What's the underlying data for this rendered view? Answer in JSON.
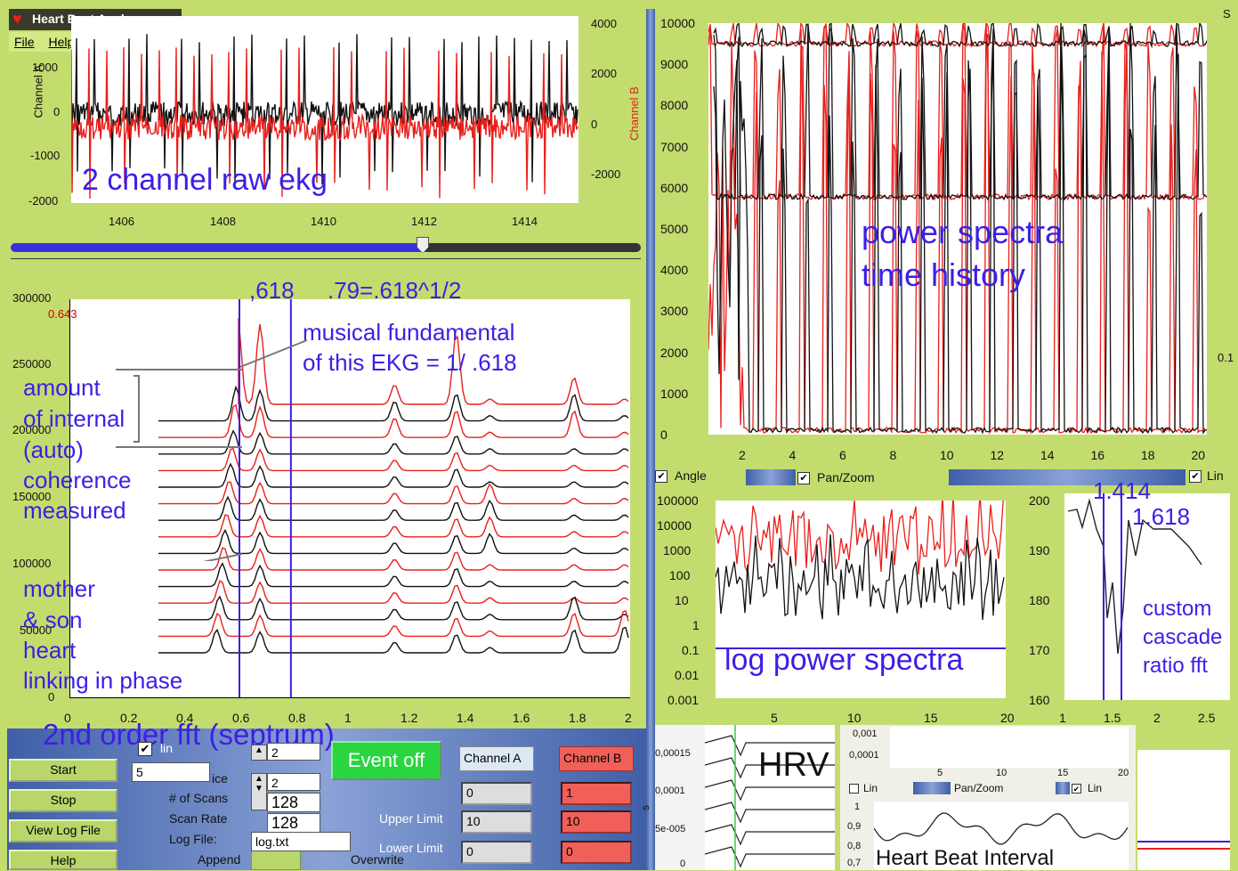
{
  "app": {
    "title": "Heart Beat Analyzer",
    "menu": [
      "File",
      "Help"
    ]
  },
  "ekg": {
    "ylabel_left": "Channel A",
    "ylabel_right": "Channel B",
    "yticks_left": [
      "1000",
      "0",
      "-1000",
      "-2000"
    ],
    "yticks_right": [
      "4000",
      "2000",
      "0",
      "-2000"
    ],
    "xticks": [
      "1406",
      "1408",
      "1410",
      "1412",
      "1414"
    ],
    "annotation": "2 channel raw ekg"
  },
  "slider": {
    "position": 0.66
  },
  "septrum": {
    "yticks": [
      "300000",
      "250000",
      "200000",
      "150000",
      "100000",
      "50000",
      "0"
    ],
    "xticks": [
      "0",
      "0.2",
      "0.4",
      "0.6",
      "0.8",
      "1",
      "1.2",
      "1.4",
      "1.6",
      "1.8",
      "2"
    ],
    "cursor_value": "0.643",
    "annotations": {
      "a618": ",618",
      "a79": ".79=.618^1/2",
      "musical1": "musical fundamental",
      "musical2": "of this EKG = 1/ .618",
      "amount": "amount",
      "internal": "of internal",
      "auto": "(auto)",
      "coherence": "coherence",
      "measured": "measured",
      "mother": "mother",
      "son": "& son",
      "heart": "heart",
      "linking": "linking in phase",
      "title": "2nd order fft (septrum)"
    }
  },
  "power": {
    "yticks": [
      "10000",
      "9000",
      "8000",
      "7000",
      "6000",
      "5000",
      "4000",
      "3000",
      "2000",
      "1000",
      "0"
    ],
    "xticks": [
      "2",
      "4",
      "6",
      "8",
      "10",
      "12",
      "14",
      "16",
      "18",
      "20"
    ],
    "annotation1": "power spectra",
    "annotation2": "time history",
    "edge_labels": {
      "s": "S",
      "zero_one": "0.1"
    },
    "checks": {
      "angle": "Angle",
      "panzoom": "Pan/Zoom",
      "lin": "Lin"
    }
  },
  "logpower": {
    "yticks": [
      "100000",
      "10000",
      "1000",
      "100",
      "10",
      "1",
      "0.1",
      "0.01",
      "0.001"
    ],
    "xticks": [
      "5",
      "10",
      "15",
      "20"
    ],
    "annotation": "log power spectra"
  },
  "ratio": {
    "yticks": [
      "200",
      "190",
      "180",
      "170",
      "160"
    ],
    "xticks": [
      "1",
      "1.5",
      "2",
      "2.5"
    ],
    "a1414": "1.414",
    "a1618": "1.618",
    "custom1": "custom",
    "custom2": "cascade",
    "custom3": "ratio fft"
  },
  "controls": {
    "start": "Start",
    "stop": "Stop",
    "viewlog": "View Log File",
    "help": "Help",
    "lin_label": "lin",
    "lin_value": "2",
    "field5": "5",
    "ice": "ice",
    "scans_label": "# of Scans",
    "scans_value": "128",
    "rate_label": "Scan Rate",
    "rate_value": "128",
    "spin_top": "2",
    "logfile_label": "Log File:",
    "logfile_value": "log.txt",
    "append": "Append",
    "overwrite": "Overwrite",
    "event": "Event off",
    "chA": "Channel A",
    "chB": "Channel B",
    "upper_label": "Upper Limit",
    "lower_label": "Lower Limit",
    "a_top": "0",
    "a_upper": "10",
    "a_lower": "0",
    "b_top": "1",
    "b_upper": "10",
    "b_lower": "0"
  },
  "hrv": {
    "label": "HRV",
    "yticks": [
      "0,00015",
      "0,0001",
      "5e-005",
      "0"
    ],
    "ylabel": "s"
  },
  "hbi": {
    "yticks": [
      "0,001",
      "0,0001"
    ],
    "xticks": [
      "5",
      "10",
      "15",
      "20"
    ],
    "checks": {
      "lin1": "Lin",
      "panzoom": "Pan/Zoom",
      "lin2": "Lin"
    },
    "yticks2": [
      "1",
      "0,9",
      "0,8",
      "0,7"
    ],
    "annotation": "Heart Beat Interval"
  },
  "colors": {
    "red": "#e8201c",
    "black": "#111111",
    "blue": "#3d1ee6",
    "panel": "#c6dc70"
  }
}
